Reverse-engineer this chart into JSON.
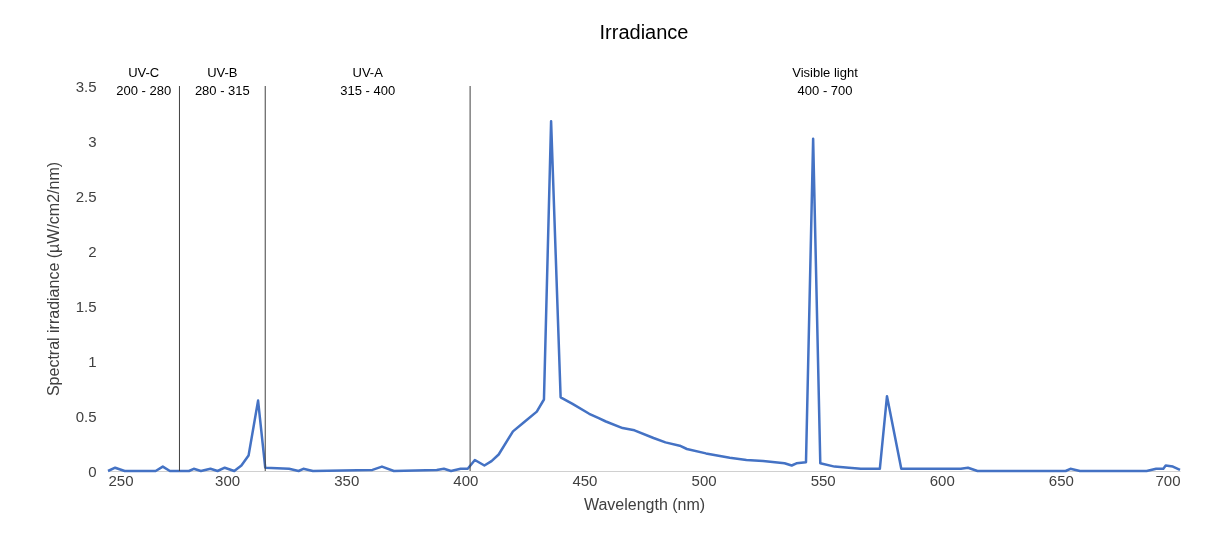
{
  "chart_data": {
    "type": "line",
    "title": "Irradiance",
    "xlabel": "Wavelength (nm)",
    "ylabel": "Spectral irradiance (µW/cm2/nm)",
    "x": [
      250,
      253,
      257,
      270,
      273,
      276,
      284,
      286,
      289,
      293,
      296,
      299,
      303,
      306,
      309,
      313,
      316,
      326,
      330,
      332,
      336,
      361,
      365,
      370,
      388,
      391,
      394,
      398,
      401,
      404,
      408,
      411,
      414,
      420,
      425,
      430,
      433,
      436,
      440,
      445,
      452,
      456,
      459,
      466,
      471,
      479,
      484,
      490,
      493,
      501,
      511,
      518,
      525,
      534,
      537,
      539,
      543,
      546,
      549,
      555,
      561,
      566,
      574,
      577,
      583,
      588,
      608,
      611,
      615,
      652,
      654,
      658,
      686,
      690,
      693,
      694,
      697,
      700
    ],
    "series": [
      {
        "color": "#4472c4",
        "values": [
          0,
          0.03,
          0,
          0,
          0.04,
          0,
          0,
          0.02,
          0,
          0.02,
          0,
          0.03,
          0,
          0.05,
          0.14,
          0.64,
          0.03,
          0.02,
          0,
          0.02,
          0,
          0.01,
          0.04,
          0,
          0.01,
          0.02,
          0,
          0.02,
          0.02,
          0.1,
          0.05,
          0.09,
          0.15,
          0.36,
          0.45,
          0.54,
          0.65,
          3.18,
          0.67,
          0.61,
          0.52,
          0.48,
          0.45,
          0.39,
          0.37,
          0.3,
          0.26,
          0.23,
          0.2,
          0.16,
          0.12,
          0.1,
          0.09,
          0.07,
          0.05,
          0.07,
          0.08,
          3.02,
          0.07,
          0.04,
          0.03,
          0.02,
          0.02,
          0.68,
          0.02,
          0.02,
          0.02,
          0.03,
          0,
          0,
          0.02,
          0,
          0,
          0.02,
          0.02,
          0.05,
          0.04,
          0.01
        ]
      }
    ],
    "xlim": [
      250,
      700
    ],
    "xticks": [
      250,
      300,
      350,
      400,
      450,
      500,
      550,
      600,
      650,
      700
    ],
    "ylim": [
      0,
      3.5
    ],
    "yticks": [
      0,
      0.5,
      1,
      1.5,
      2,
      2.5,
      3,
      3.5
    ],
    "grid": false,
    "ref_lines": [
      {
        "axis": "x",
        "value": 280,
        "color": "#404040"
      },
      {
        "axis": "x",
        "value": 316,
        "color": "#404040"
      },
      {
        "axis": "x",
        "value": 402,
        "color": "#404040"
      }
    ],
    "annotations": [
      "UV-C\n200 - 280",
      "UV-B\n280 - 315",
      "UV-A\n315 - 400",
      "Visible light\n400 - 700"
    ]
  }
}
